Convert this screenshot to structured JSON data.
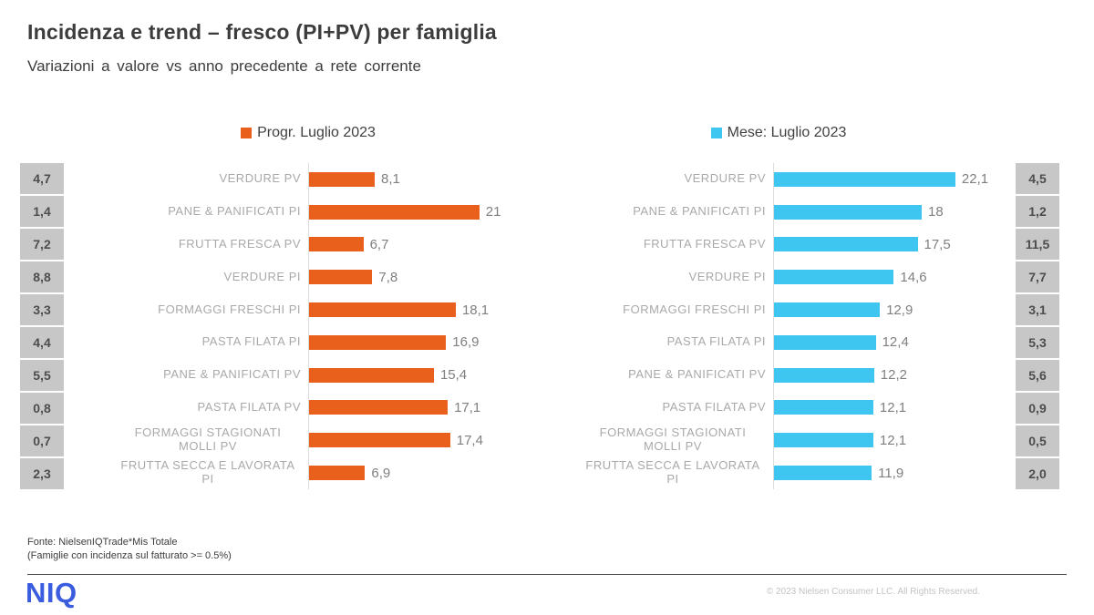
{
  "header": {
    "title": "Incidenza e trend – fresco (PI+PV) per famiglia",
    "subtitle": "Variazioni a valore vs anno precedente a rete corrente"
  },
  "chart_data": {
    "type": "bar",
    "orientation": "horizontal",
    "title": "Incidenza e trend – fresco (PI+PV) per famiglia",
    "subtitle": "Variazioni a valore vs anno precedente a rete corrente",
    "grid": false,
    "legend_position": "top",
    "categories": [
      "VERDURE PV",
      "PANE & PANIFICATI PI",
      "FRUTTA FRESCA PV",
      "VERDURE PI",
      "FORMAGGI FRESCHI PI",
      "PASTA FILATA PI",
      "PANE & PANIFICATI PV",
      "PASTA FILATA PV",
      "FORMAGGI STAGIONATI MOLLI PV",
      "FRUTTA SECCA E LAVORATA PI"
    ],
    "series": [
      {
        "name": "Progr. Luglio 2023",
        "color": "#e8601c",
        "xlim": [
          0,
          28
        ],
        "values": [
          8.1,
          21,
          6.7,
          7.8,
          18.1,
          16.9,
          15.4,
          17.1,
          17.4,
          6.9
        ],
        "value_labels": [
          "8,1",
          "21",
          "6,7",
          "7,8",
          "18,1",
          "16,9",
          "15,4",
          "17,1",
          "17,4",
          "6,9"
        ],
        "incidenza_values": [
          4.7,
          1.4,
          7.2,
          8.8,
          3.3,
          4.4,
          5.5,
          0.8,
          0.7,
          2.3
        ],
        "incidenza_labels": [
          "4,7",
          "1,4",
          "7,2",
          "8,8",
          "3,3",
          "4,4",
          "5,5",
          "0,8",
          "0,7",
          "2,3"
        ]
      },
      {
        "name": "Mese: Luglio 2023",
        "color": "#3ec6f0",
        "xlim": [
          0,
          29
        ],
        "values": [
          22.1,
          18,
          17.5,
          14.6,
          12.9,
          12.4,
          12.2,
          12.1,
          12.1,
          11.9
        ],
        "value_labels": [
          "22,1",
          "18",
          "17,5",
          "14,6",
          "12,9",
          "12,4",
          "12,2",
          "12,1",
          "12,1",
          "11,9"
        ],
        "incidenza_values": [
          4.5,
          1.2,
          11.5,
          7.7,
          3.1,
          5.3,
          5.6,
          0.9,
          0.5,
          2.0
        ],
        "incidenza_labels": [
          "4,5",
          "1,2",
          "11,5",
          "7,7",
          "3,1",
          "5,3",
          "5,6",
          "0,9",
          "0,5",
          "2,0"
        ]
      }
    ]
  },
  "footer": {
    "source_line1": "Fonte: NielsenIQTrade*Mis Totale",
    "source_line2": "(Famiglie con incidenza sul fatturato >= 0.5%)",
    "logo": "NIQ",
    "copyright": "© 2023  Nielsen Consumer LLC. All Rights Reserved."
  }
}
